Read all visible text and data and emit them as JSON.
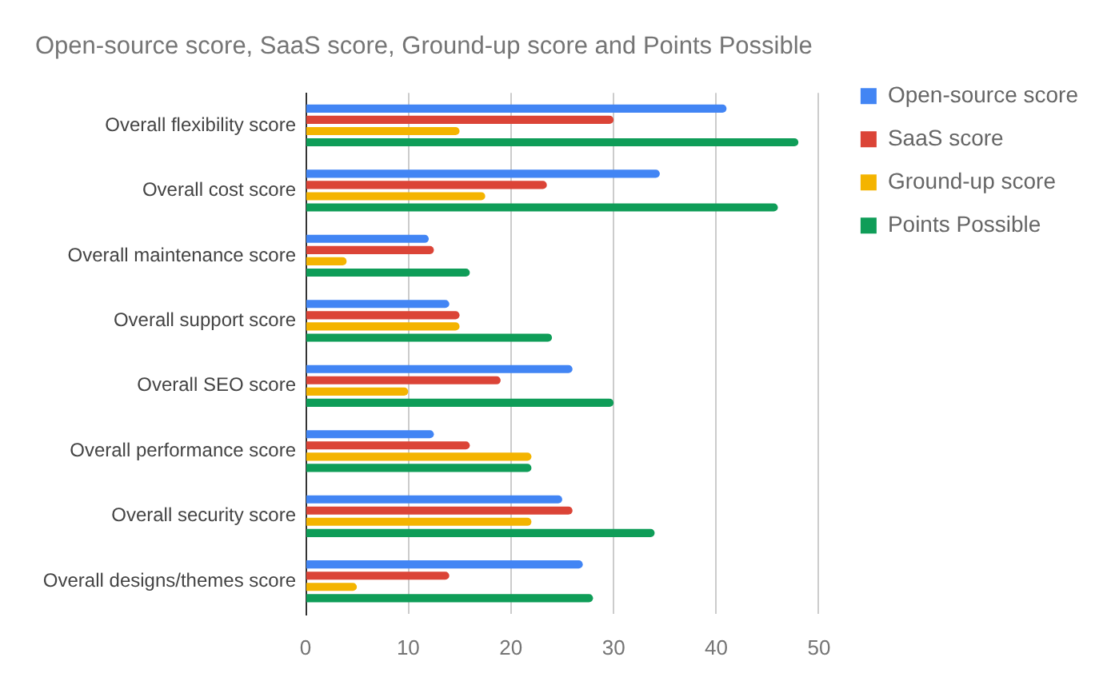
{
  "chart_data": {
    "type": "bar",
    "orientation": "horizontal",
    "title": "Open-source score, SaaS score, Ground-up score and Points Possible",
    "categories": [
      "Overall flexibility score",
      "Overall cost score",
      "Overall maintenance score",
      "Overall support score",
      "Overall SEO score",
      "Overall performance score",
      "Overall security score",
      "Overall designs/themes score"
    ],
    "series": [
      {
        "name": "Open-source score",
        "color": "#4285f4",
        "values": [
          41,
          34.5,
          12,
          14,
          26,
          12.5,
          25,
          27
        ]
      },
      {
        "name": "SaaS score",
        "color": "#db4437",
        "values": [
          30,
          23.5,
          12.5,
          15,
          19,
          16,
          26,
          14
        ]
      },
      {
        "name": "Ground-up score",
        "color": "#f4b400",
        "values": [
          15,
          17.5,
          4,
          15,
          10,
          22,
          22,
          5
        ]
      },
      {
        "name": "Points Possible",
        "color": "#0f9d58",
        "values": [
          48,
          46,
          16,
          24,
          30,
          22,
          34,
          28
        ]
      }
    ],
    "xlim": [
      0,
      50
    ],
    "xticks": [
      0,
      10,
      20,
      30,
      40,
      50
    ],
    "grid": "x",
    "legend": "right"
  }
}
